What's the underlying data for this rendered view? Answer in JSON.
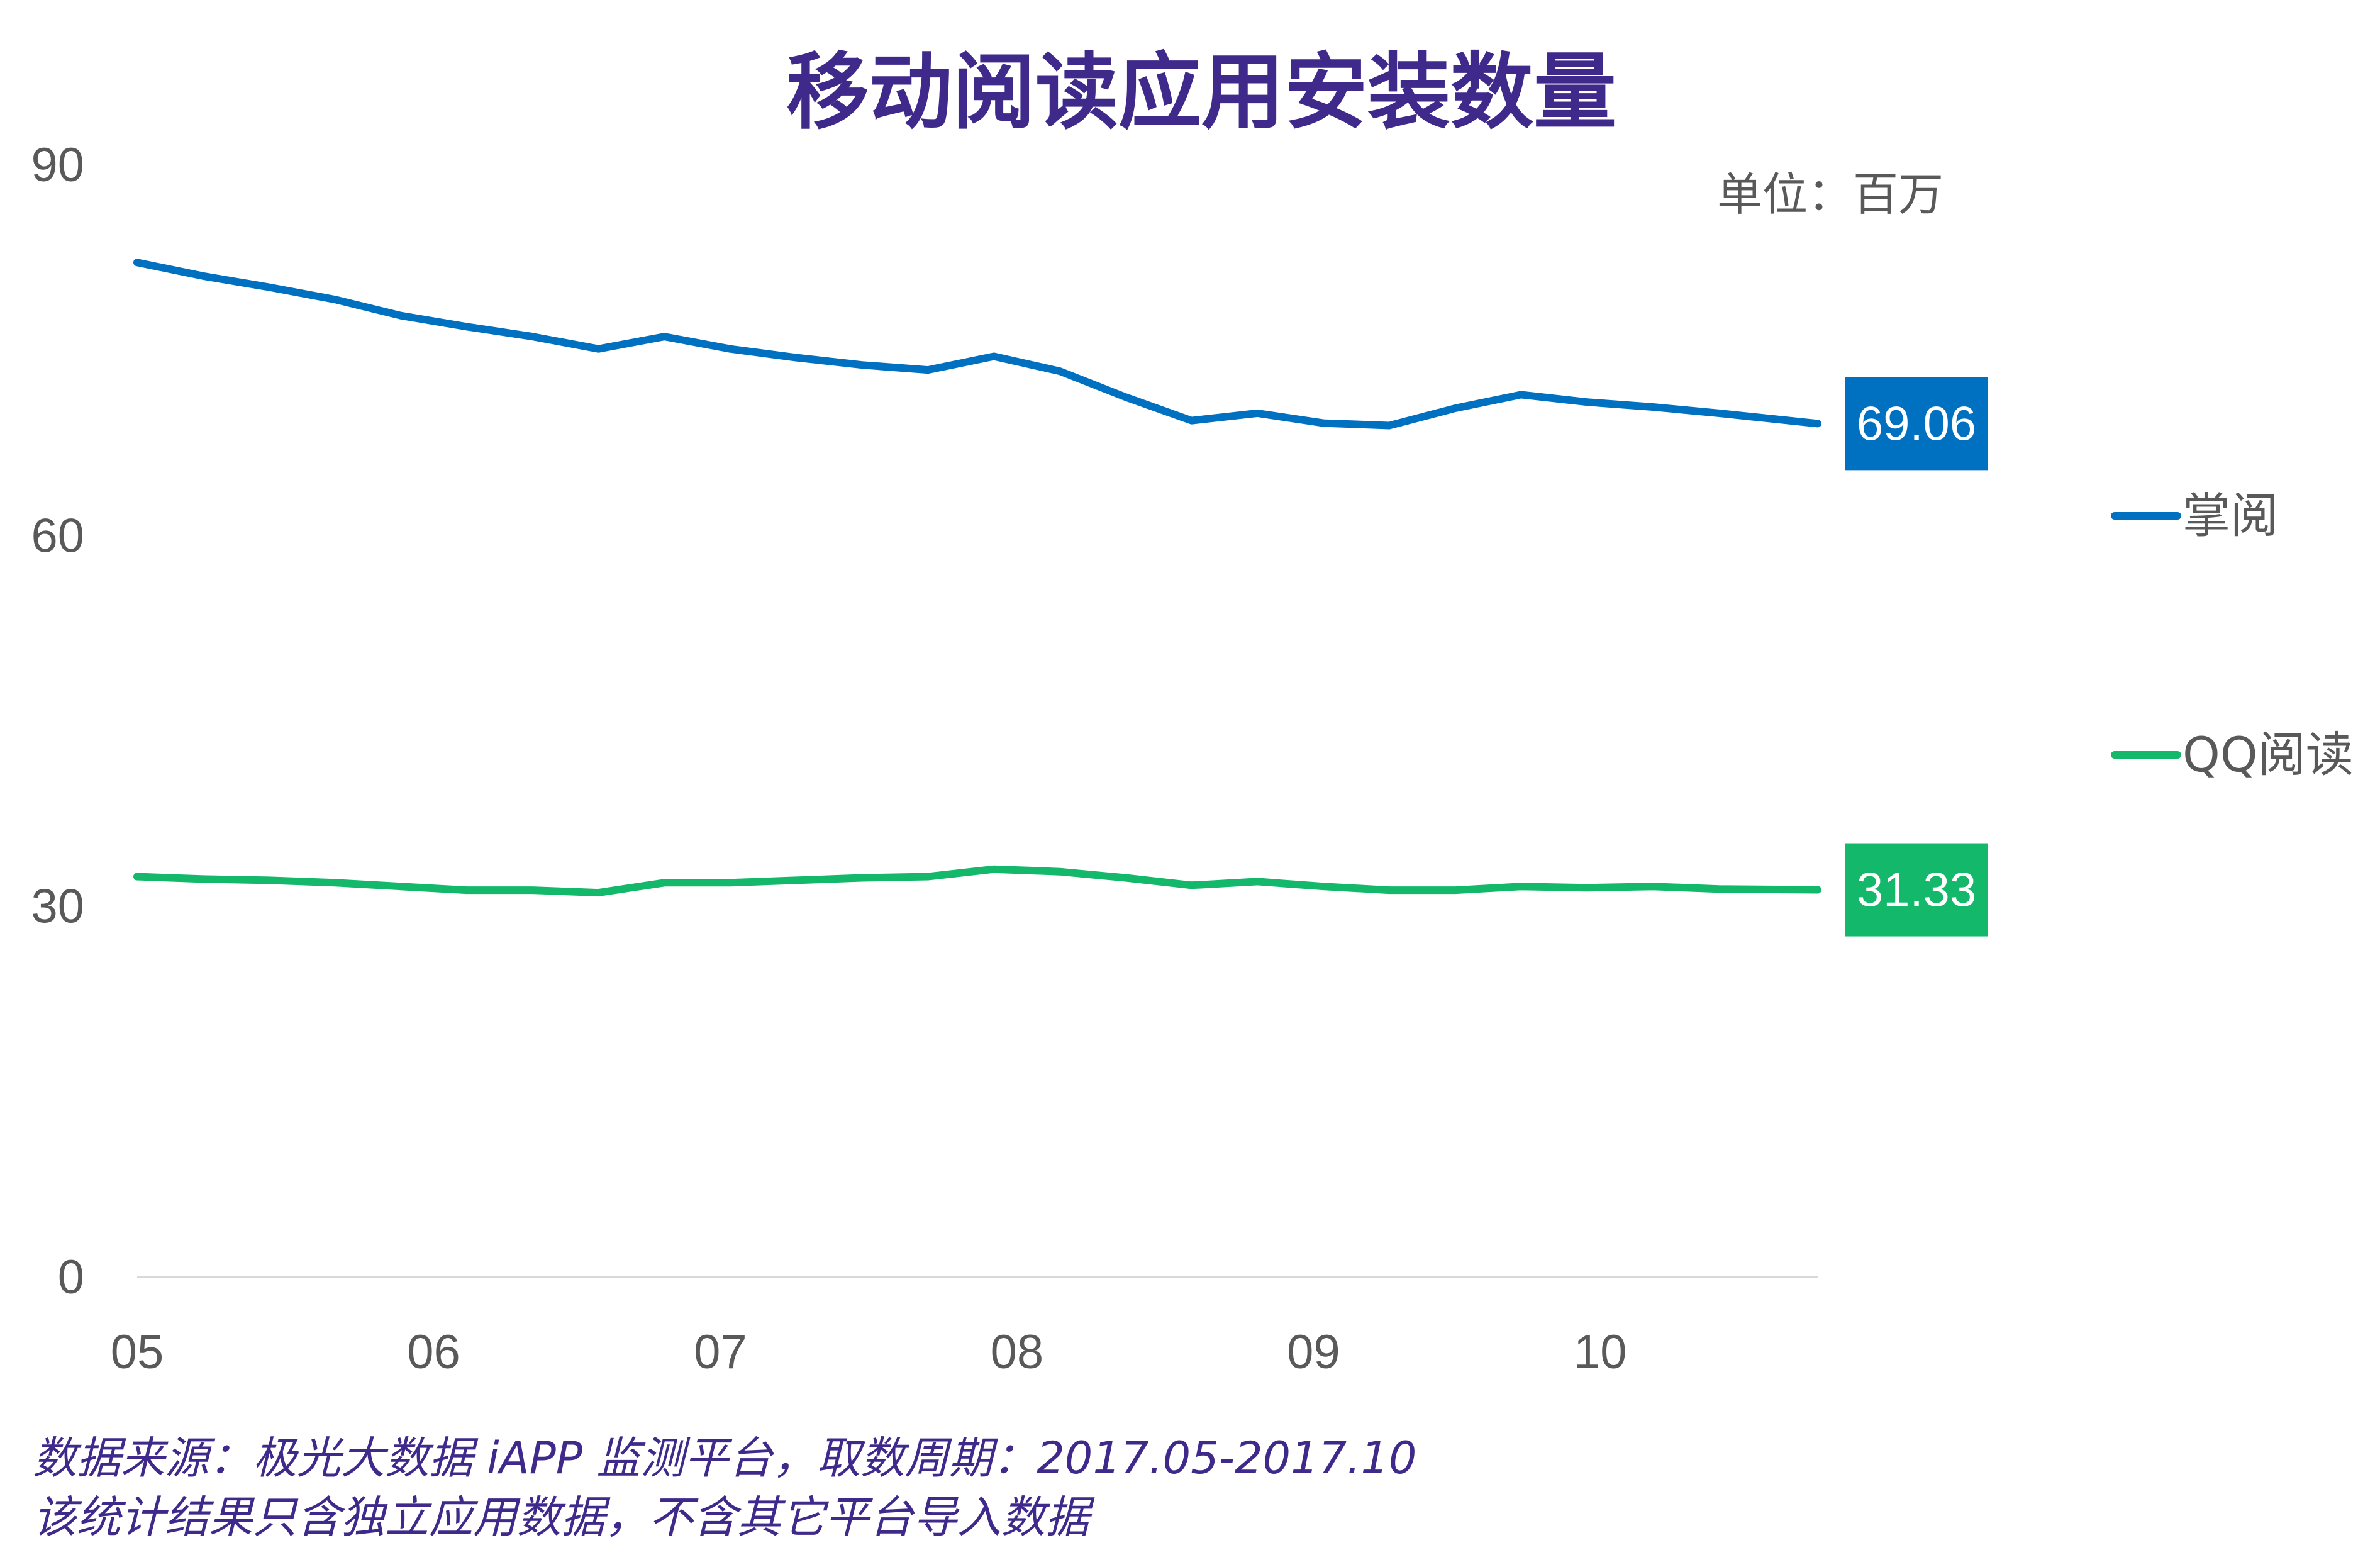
{
  "chart_data": {
    "type": "line",
    "title": "移动阅读应用安装数量",
    "unit_label": "单位：百万",
    "xlabel": "",
    "ylabel": "",
    "ylim": [
      0,
      90
    ],
    "yticks": [
      "0",
      "30",
      "60",
      "90"
    ],
    "x_tick_labels": [
      "05",
      "06",
      "07",
      "08",
      "09",
      "10"
    ],
    "x_tick_positions": [
      0,
      4.5,
      8.85,
      13.35,
      17.85,
      22.2
    ],
    "x_range": [
      0,
      25.5
    ],
    "grid": false,
    "legend_position": "right",
    "series": [
      {
        "name": "掌阅",
        "color": "#0070c0",
        "x": [
          0,
          1,
          2,
          3,
          4,
          5,
          6,
          7,
          8,
          9,
          10,
          11,
          12,
          13,
          14,
          15,
          16,
          17,
          18,
          19,
          20,
          21,
          22,
          23,
          24,
          25.5
        ],
        "values": [
          82.1,
          81.0,
          80.1,
          79.1,
          77.8,
          76.9,
          76.1,
          75.1,
          76.1,
          75.1,
          74.4,
          73.8,
          73.4,
          74.5,
          73.3,
          71.2,
          69.3,
          69.9,
          69.1,
          68.9,
          70.3,
          71.4,
          70.8,
          70.4,
          69.9,
          69.06
        ],
        "end_label": "69.06"
      },
      {
        "name": "QQ阅读",
        "color": "#14b86b",
        "x": [
          0,
          1,
          2,
          3,
          4,
          5,
          6,
          7,
          8,
          9,
          10,
          11,
          12,
          13,
          14,
          15,
          16,
          17,
          18,
          19,
          20,
          21,
          22,
          23,
          24,
          25.5
        ],
        "values": [
          32.4,
          32.2,
          32.1,
          31.9,
          31.6,
          31.3,
          31.3,
          31.1,
          31.9,
          31.9,
          32.1,
          32.3,
          32.4,
          33.0,
          32.8,
          32.3,
          31.7,
          32.0,
          31.6,
          31.3,
          31.3,
          31.6,
          31.5,
          31.6,
          31.4,
          31.33
        ],
        "end_label": "31.33"
      }
    ]
  },
  "footer": {
    "source_line": "数据来源：极光大数据 iAPP 监测平台，取数周期：2017.05-2017.10",
    "note_line": "该统计结果只含独立应用数据，不含其它平台导入数据"
  }
}
